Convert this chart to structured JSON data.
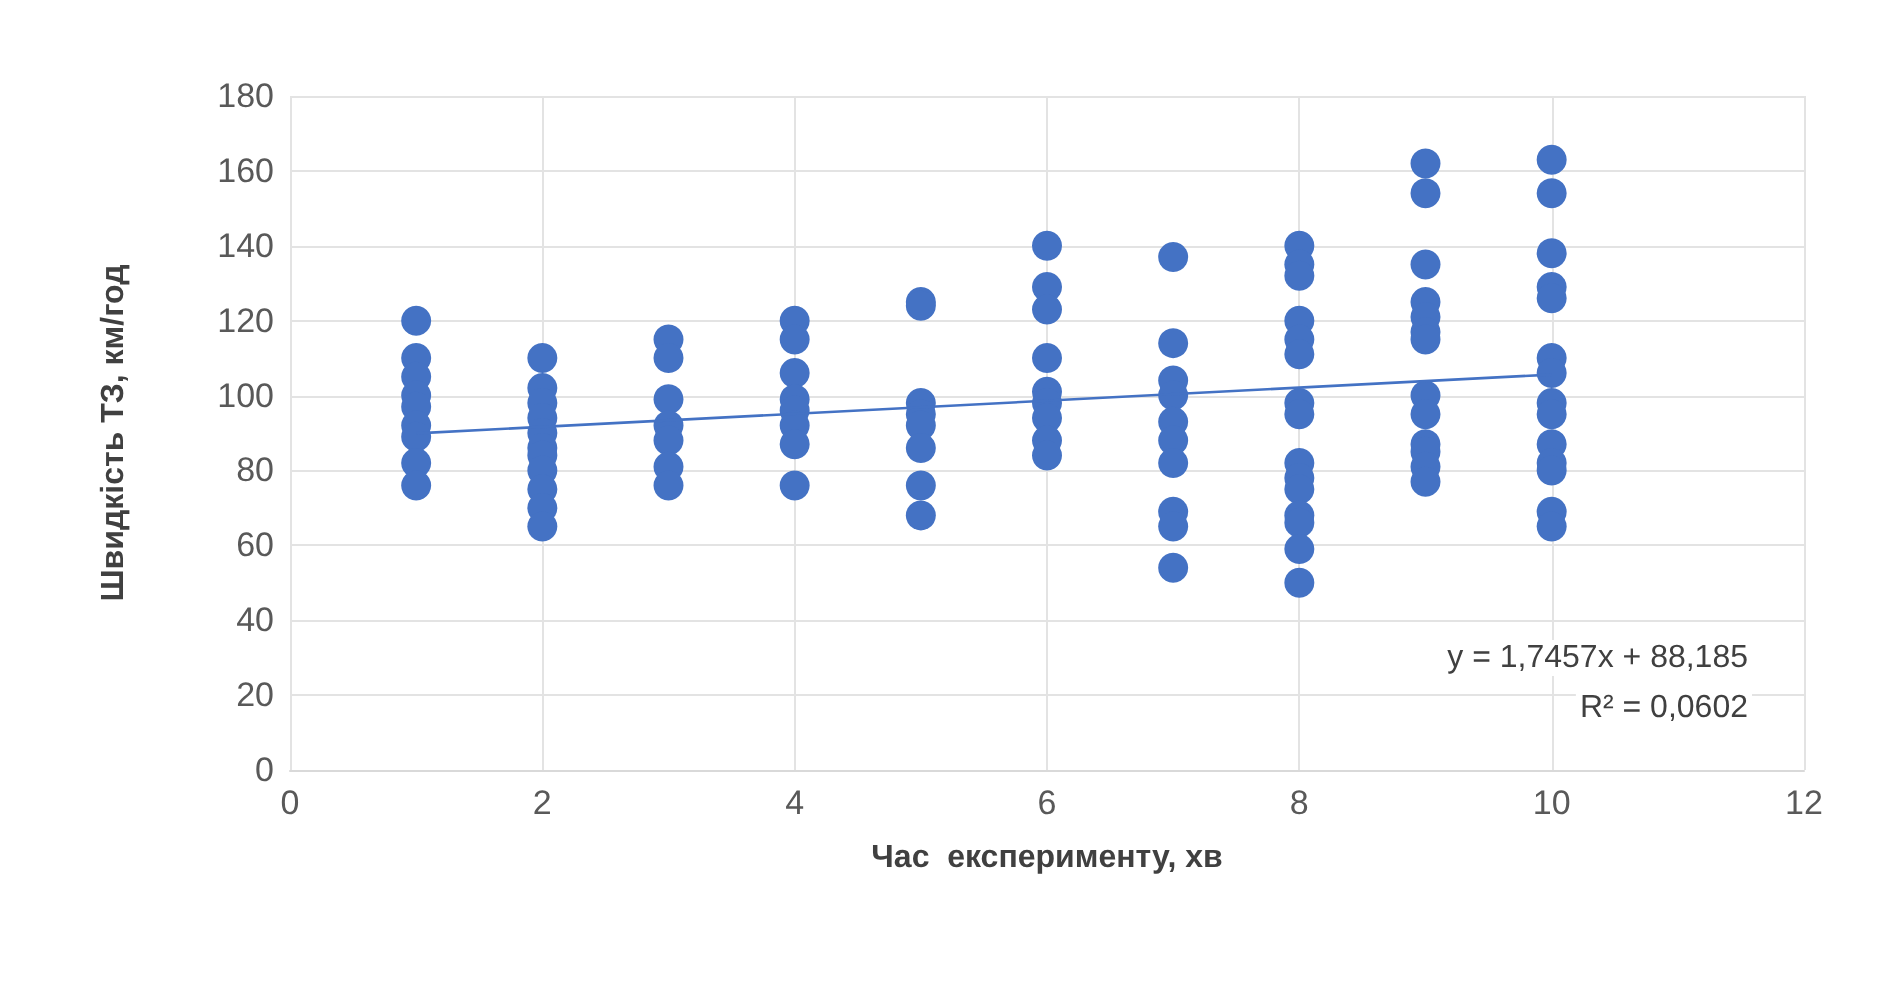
{
  "chart_data": {
    "type": "scatter",
    "xlabel": "Час  експерименту, хв",
    "ylabel": "Швидкість ТЗ, км/год",
    "xlim": [
      0,
      12
    ],
    "xticks": [
      0,
      2,
      4,
      6,
      8,
      10,
      12
    ],
    "ylim": [
      0,
      180
    ],
    "yticks": [
      0,
      20,
      40,
      60,
      80,
      100,
      120,
      140,
      160,
      180
    ],
    "grid": true,
    "series": [
      {
        "color": "#4472c4",
        "marker": "circle",
        "x": [
          1,
          1,
          1,
          1,
          1,
          1,
          1,
          1,
          1,
          2,
          2,
          2,
          2,
          2,
          2,
          2,
          2,
          2,
          2,
          2,
          3,
          3,
          3,
          3,
          3,
          3,
          3,
          4,
          4,
          4,
          4,
          4,
          4,
          4,
          4,
          5,
          5,
          5,
          5,
          5,
          5,
          5,
          5,
          6,
          6,
          6,
          6,
          6,
          6,
          6,
          6,
          6,
          7,
          7,
          7,
          7,
          7,
          7,
          7,
          7,
          7,
          7,
          8,
          8,
          8,
          8,
          8,
          8,
          8,
          8,
          8,
          8,
          8,
          8,
          8,
          8,
          8,
          9,
          9,
          9,
          9,
          9,
          9,
          9,
          9,
          9,
          9,
          9,
          9,
          9,
          10,
          10,
          10,
          10,
          10,
          10,
          10,
          10,
          10,
          10,
          10,
          10,
          10,
          10
        ],
        "values": [
          120,
          110,
          105,
          100,
          97,
          92,
          89,
          82,
          76,
          110,
          102,
          98,
          94,
          90,
          86,
          84,
          80,
          75,
          70,
          65,
          115,
          110,
          99,
          92,
          88,
          81,
          76,
          120,
          115,
          106,
          99,
          96,
          92,
          87,
          76,
          125,
          124,
          98,
          95,
          92,
          86,
          76,
          68,
          140,
          129,
          123,
          110,
          101,
          98,
          94,
          88,
          84,
          137,
          114,
          104,
          100,
          93,
          88,
          82,
          69,
          65,
          54,
          140,
          135,
          132,
          120,
          115,
          111,
          98,
          95,
          82,
          78,
          75,
          68,
          66,
          59,
          50,
          162,
          154,
          135,
          125,
          121,
          117,
          115,
          100,
          95,
          87,
          85,
          81,
          77,
          163,
          154,
          138,
          129,
          126,
          110,
          106,
          98,
          95,
          87,
          82,
          80,
          69,
          65
        ]
      },
      {
        "type": "line",
        "color": "#4472c4",
        "x": [
          1,
          10
        ],
        "values": [
          89.9,
          105.6
        ]
      }
    ],
    "annotations": [
      "y = 1,7457x + 88,185",
      "R² = 0,0602"
    ]
  }
}
